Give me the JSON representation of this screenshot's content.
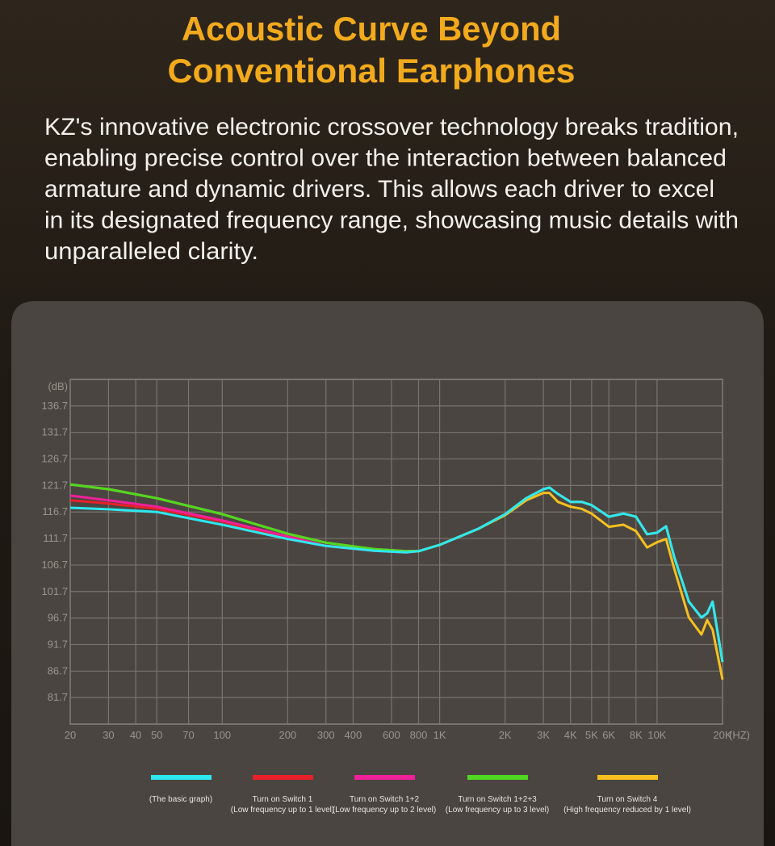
{
  "header": {
    "title_lines": [
      "Acoustic Curve Beyond",
      "Conventional Earphones"
    ],
    "body_lines": [
      "KZ's innovative electronic crossover technology breaks tradition,",
      "enabling precise control over the interaction between balanced",
      "armature and dynamic drivers. This allows each driver to excel",
      "in its designated frequency range, showcasing music details with",
      "unparalleled clarity."
    ]
  },
  "chart_data": {
    "type": "line",
    "y_label": "(dB)",
    "x_label": "(HZ)",
    "log_x": true,
    "grid": true,
    "x": [
      20,
      30,
      50,
      100,
      200,
      300,
      500,
      700,
      800,
      1000,
      1500,
      2000,
      2500,
      3000,
      3200,
      3500,
      4000,
      4500,
      5000,
      6000,
      7000,
      8000,
      9000,
      10000,
      11000,
      12000,
      14000,
      16000,
      17000,
      18000,
      20000
    ],
    "xlim": [
      20,
      20000
    ],
    "xticks": [
      20,
      30,
      40,
      50,
      70,
      100,
      200,
      300,
      400,
      600,
      800,
      {
        "value": 1000,
        "label": "1K"
      },
      {
        "value": 2000,
        "label": "2K"
      },
      {
        "value": 3000,
        "label": "3K"
      },
      {
        "value": 4000,
        "label": "4K"
      },
      {
        "value": 5000,
        "label": "5K"
      },
      {
        "value": 6000,
        "label": "6K"
      },
      {
        "value": 8000,
        "label": "8K"
      },
      {
        "value": 10000,
        "label": "10K"
      },
      {
        "value": 20000,
        "label": "20K"
      }
    ],
    "ylim": [
      76.7,
      141.7
    ],
    "yticks": [
      81.7,
      86.7,
      91.7,
      96.7,
      101.7,
      106.7,
      111.7,
      116.7,
      121.7,
      126.7,
      131.7,
      136.7
    ],
    "series": [
      {
        "name": "Turn on Switch 1",
        "description": "(Low frequency up to 1 level)",
        "color": "#e8202a",
        "values": [
          118.9,
          118.3,
          117.3,
          114.9,
          111.6,
          110.3,
          109.4,
          109.1,
          109.3,
          110.5,
          113.5,
          116.3,
          119.3,
          121,
          121.3,
          120.1,
          118.6,
          118.6,
          118,
          115.8,
          116.4,
          115.8,
          112.5,
          112.8,
          114,
          108.2,
          99.8,
          96.8,
          97.6,
          99.8,
          88.4
        ]
      },
      {
        "name": "Turn on Switch 1+2",
        "description": "(Low frequency up to 2 level)",
        "color": "#f0209a",
        "values": [
          119.8,
          118.9,
          117.7,
          115.1,
          112.1,
          110.3,
          109.4,
          109.1,
          109.3,
          110.5,
          113.5,
          116.3,
          119.3,
          121,
          121.3,
          120.1,
          118.6,
          118.6,
          118,
          115.8,
          116.4,
          115.8,
          112.5,
          112.8,
          114,
          108.2,
          99.8,
          96.8,
          97.6,
          99.8,
          88.4
        ]
      },
      {
        "name": "Turn on Switch 4",
        "description": "(High frequency reduced by 1 level)",
        "color": "#f5c020",
        "values": [
          121.9,
          121,
          119.3,
          116.3,
          112.6,
          110.9,
          109.7,
          109.3,
          109.3,
          110.5,
          113.5,
          116.1,
          118.9,
          120.3,
          120.3,
          118.6,
          117.7,
          117.3,
          116.4,
          113.9,
          114.3,
          113.1,
          110,
          111,
          111.6,
          106,
          96.8,
          93.6,
          96.3,
          94.5,
          85.1
        ]
      },
      {
        "name": "Turn on Switch 1+2+3",
        "description": "(Low frequency up to 3 level)",
        "color": "#50d820",
        "values": [
          121.9,
          121,
          119.3,
          116.3,
          112.6,
          110.9,
          109.7,
          109.3,
          109.3,
          110.5,
          113.5,
          116.3,
          119.3,
          121,
          121.3,
          120.1,
          118.6,
          118.6,
          118,
          115.8,
          116.4,
          115.8,
          112.5,
          112.8,
          114,
          108.2,
          99.8,
          96.8,
          97.6,
          99.8,
          88.4
        ]
      },
      {
        "name": "(The basic graph)",
        "color": "#2ee8f0",
        "values": [
          117.5,
          117.2,
          116.7,
          114.3,
          111.6,
          110.3,
          109.4,
          109.1,
          109.3,
          110.5,
          113.5,
          116.3,
          119.3,
          121,
          121.3,
          120.1,
          118.6,
          118.6,
          118,
          115.8,
          116.4,
          115.8,
          112.5,
          112.8,
          114,
          108.2,
          99.8,
          96.8,
          97.6,
          99.8,
          88.4
        ]
      }
    ],
    "legend_order": [
      4,
      0,
      1,
      3,
      2
    ]
  }
}
